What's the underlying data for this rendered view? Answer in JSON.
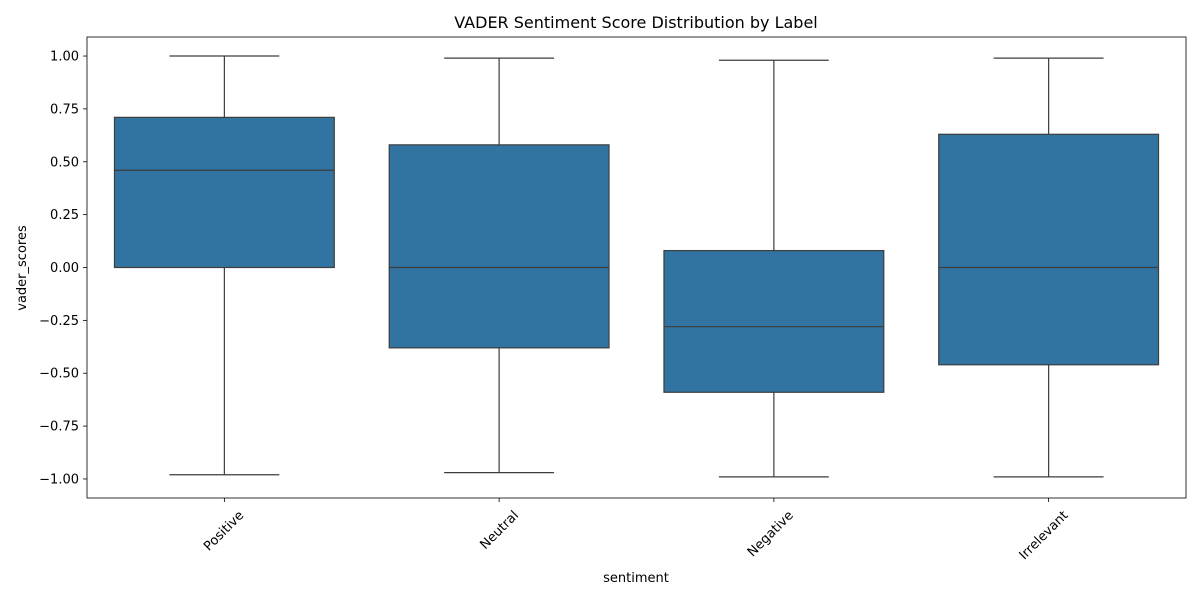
{
  "chart_data": {
    "type": "box",
    "title": "VADER Sentiment Score Distribution by Label",
    "xlabel": "sentiment",
    "ylabel": "vader_scores",
    "ylim": [
      -1.09,
      1.09
    ],
    "yticks": [
      1.0,
      0.75,
      0.5,
      0.25,
      0.0,
      -0.25,
      -0.5,
      -0.75,
      -1.0
    ],
    "ytick_labels": [
      "1.00",
      "0.75",
      "0.50",
      "0.25",
      "0.00",
      "−0.25",
      "−0.50",
      "−0.75",
      "−1.00"
    ],
    "grid": false,
    "color": "#3274a1",
    "edge_color": "#3d3d3d",
    "categories": [
      "Positive",
      "Neutral",
      "Negative",
      "Irrelevant"
    ],
    "boxes": [
      {
        "category": "Positive",
        "whisker_low": -0.98,
        "q1": 0.0,
        "median": 0.46,
        "q3": 0.71,
        "whisker_high": 1.0
      },
      {
        "category": "Neutral",
        "whisker_low": -0.97,
        "q1": -0.38,
        "median": 0.0,
        "q3": 0.58,
        "whisker_high": 0.99
      },
      {
        "category": "Negative",
        "whisker_low": -0.99,
        "q1": -0.59,
        "median": -0.28,
        "q3": 0.08,
        "whisker_high": 0.98
      },
      {
        "category": "Irrelevant",
        "whisker_low": -0.99,
        "q1": -0.46,
        "median": 0.0,
        "q3": 0.63,
        "whisker_high": 0.99
      }
    ]
  }
}
